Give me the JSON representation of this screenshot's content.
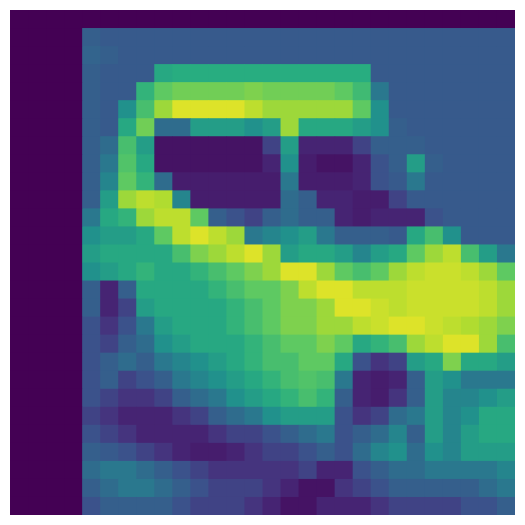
{
  "chart_data": {
    "type": "heatmap",
    "colormap": "viridis",
    "grid": false,
    "axes": "off",
    "value_range": [
      0,
      1
    ],
    "rows": 28,
    "cols": 28,
    "values": [
      [
        0.0,
        0.0,
        0.0,
        0.0,
        0.0,
        0.0,
        0.0,
        0.0,
        0.0,
        0.0,
        0.0,
        0.0,
        0.0,
        0.0,
        0.0,
        0.0,
        0.0,
        0.0,
        0.0,
        0.0,
        0.0,
        0.0,
        0.0,
        0.0,
        0.0,
        0.0,
        0.0,
        0.0
      ],
      [
        0.0,
        0.0,
        0.0,
        0.0,
        0.3,
        0.28,
        0.28,
        0.28,
        0.28,
        0.28,
        0.28,
        0.28,
        0.28,
        0.28,
        0.28,
        0.28,
        0.28,
        0.28,
        0.28,
        0.28,
        0.28,
        0.28,
        0.28,
        0.28,
        0.28,
        0.28,
        0.28,
        0.28
      ],
      [
        0.0,
        0.0,
        0.0,
        0.0,
        0.32,
        0.3,
        0.28,
        0.28,
        0.28,
        0.28,
        0.28,
        0.28,
        0.28,
        0.28,
        0.28,
        0.28,
        0.28,
        0.28,
        0.28,
        0.28,
        0.28,
        0.28,
        0.28,
        0.28,
        0.28,
        0.28,
        0.28,
        0.28
      ],
      [
        0.0,
        0.0,
        0.0,
        0.0,
        0.3,
        0.28,
        0.28,
        0.28,
        0.6,
        0.62,
        0.62,
        0.62,
        0.62,
        0.62,
        0.62,
        0.62,
        0.62,
        0.62,
        0.62,
        0.62,
        0.28,
        0.28,
        0.28,
        0.28,
        0.28,
        0.28,
        0.28,
        0.28
      ],
      [
        0.0,
        0.0,
        0.0,
        0.0,
        0.3,
        0.28,
        0.28,
        0.65,
        0.75,
        0.78,
        0.78,
        0.78,
        0.78,
        0.8,
        0.78,
        0.78,
        0.78,
        0.78,
        0.75,
        0.68,
        0.4,
        0.28,
        0.28,
        0.28,
        0.28,
        0.28,
        0.28,
        0.28
      ],
      [
        0.0,
        0.0,
        0.0,
        0.0,
        0.3,
        0.28,
        0.5,
        0.7,
        0.85,
        0.95,
        0.95,
        0.95,
        0.95,
        0.9,
        0.85,
        0.85,
        0.85,
        0.85,
        0.85,
        0.75,
        0.5,
        0.28,
        0.28,
        0.28,
        0.28,
        0.28,
        0.28,
        0.28
      ],
      [
        0.0,
        0.0,
        0.0,
        0.0,
        0.3,
        0.28,
        0.6,
        0.78,
        0.35,
        0.35,
        0.55,
        0.55,
        0.55,
        0.5,
        0.55,
        0.85,
        0.6,
        0.6,
        0.6,
        0.55,
        0.5,
        0.3,
        0.28,
        0.28,
        0.28,
        0.28,
        0.28,
        0.28
      ],
      [
        0.0,
        0.0,
        0.0,
        0.0,
        0.3,
        0.35,
        0.7,
        0.55,
        0.05,
        0.05,
        0.05,
        0.05,
        0.05,
        0.05,
        0.2,
        0.55,
        0.1,
        0.1,
        0.1,
        0.2,
        0.3,
        0.3,
        0.3,
        0.28,
        0.28,
        0.28,
        0.28,
        0.28
      ],
      [
        0.0,
        0.0,
        0.0,
        0.0,
        0.3,
        0.4,
        0.72,
        0.6,
        0.05,
        0.05,
        0.05,
        0.05,
        0.05,
        0.05,
        0.1,
        0.5,
        0.08,
        0.05,
        0.05,
        0.1,
        0.25,
        0.3,
        0.55,
        0.3,
        0.28,
        0.28,
        0.28,
        0.28
      ],
      [
        0.0,
        0.0,
        0.0,
        0.0,
        0.3,
        0.45,
        0.75,
        0.65,
        0.35,
        0.08,
        0.08,
        0.08,
        0.08,
        0.08,
        0.08,
        0.4,
        0.08,
        0.08,
        0.08,
        0.1,
        0.25,
        0.28,
        0.4,
        0.28,
        0.28,
        0.28,
        0.28,
        0.28
      ],
      [
        0.0,
        0.0,
        0.0,
        0.0,
        0.3,
        0.55,
        0.85,
        0.9,
        0.88,
        0.45,
        0.08,
        0.08,
        0.08,
        0.08,
        0.08,
        0.35,
        0.3,
        0.1,
        0.1,
        0.08,
        0.08,
        0.2,
        0.28,
        0.28,
        0.28,
        0.28,
        0.28,
        0.28
      ],
      [
        0.0,
        0.0,
        0.0,
        0.0,
        0.4,
        0.6,
        0.65,
        0.85,
        0.9,
        0.9,
        0.75,
        0.3,
        0.25,
        0.2,
        0.3,
        0.35,
        0.3,
        0.3,
        0.1,
        0.08,
        0.1,
        0.1,
        0.1,
        0.25,
        0.28,
        0.28,
        0.28,
        0.28
      ],
      [
        0.0,
        0.0,
        0.0,
        0.0,
        0.5,
        0.55,
        0.55,
        0.6,
        0.75,
        0.9,
        0.95,
        0.9,
        0.85,
        0.4,
        0.45,
        0.5,
        0.55,
        0.4,
        0.3,
        0.3,
        0.3,
        0.28,
        0.6,
        0.7,
        0.5,
        0.28,
        0.28,
        0.28
      ],
      [
        0.0,
        0.0,
        0.0,
        0.0,
        0.55,
        0.6,
        0.6,
        0.6,
        0.6,
        0.7,
        0.8,
        0.85,
        0.9,
        0.95,
        0.85,
        0.55,
        0.6,
        0.6,
        0.55,
        0.45,
        0.55,
        0.6,
        0.75,
        0.85,
        0.9,
        0.7,
        0.55,
        0.4
      ],
      [
        0.0,
        0.0,
        0.0,
        0.0,
        0.5,
        0.55,
        0.6,
        0.65,
        0.6,
        0.6,
        0.65,
        0.7,
        0.75,
        0.8,
        0.85,
        0.95,
        0.95,
        0.85,
        0.75,
        0.7,
        0.75,
        0.85,
        0.9,
        0.92,
        0.92,
        0.9,
        0.85,
        0.75
      ],
      [
        0.0,
        0.0,
        0.0,
        0.0,
        0.3,
        0.1,
        0.3,
        0.6,
        0.6,
        0.6,
        0.6,
        0.65,
        0.7,
        0.75,
        0.75,
        0.8,
        0.9,
        0.95,
        0.95,
        0.9,
        0.9,
        0.9,
        0.92,
        0.92,
        0.92,
        0.92,
        0.9,
        0.85
      ],
      [
        0.0,
        0.0,
        0.0,
        0.0,
        0.3,
        0.1,
        0.2,
        0.55,
        0.6,
        0.6,
        0.6,
        0.6,
        0.65,
        0.7,
        0.75,
        0.8,
        0.8,
        0.85,
        0.95,
        0.95,
        0.92,
        0.9,
        0.92,
        0.92,
        0.92,
        0.92,
        0.9,
        0.85
      ],
      [
        0.0,
        0.0,
        0.0,
        0.0,
        0.25,
        0.15,
        0.25,
        0.4,
        0.55,
        0.6,
        0.6,
        0.6,
        0.65,
        0.7,
        0.75,
        0.8,
        0.8,
        0.85,
        0.85,
        0.9,
        0.92,
        0.95,
        0.95,
        0.92,
        0.9,
        0.88,
        0.85,
        0.8
      ],
      [
        0.0,
        0.0,
        0.0,
        0.0,
        0.25,
        0.2,
        0.3,
        0.35,
        0.5,
        0.55,
        0.6,
        0.6,
        0.6,
        0.65,
        0.7,
        0.75,
        0.75,
        0.8,
        0.75,
        0.6,
        0.65,
        0.7,
        0.85,
        0.9,
        0.95,
        0.95,
        0.85,
        0.7
      ],
      [
        0.0,
        0.0,
        0.0,
        0.0,
        0.25,
        0.3,
        0.35,
        0.3,
        0.4,
        0.45,
        0.5,
        0.55,
        0.6,
        0.65,
        0.7,
        0.7,
        0.75,
        0.75,
        0.6,
        0.25,
        0.15,
        0.2,
        0.55,
        0.6,
        0.8,
        0.6,
        0.6,
        0.55
      ],
      [
        0.0,
        0.0,
        0.0,
        0.0,
        0.25,
        0.3,
        0.2,
        0.25,
        0.3,
        0.4,
        0.45,
        0.5,
        0.55,
        0.6,
        0.65,
        0.7,
        0.72,
        0.7,
        0.4,
        0.1,
        0.08,
        0.1,
        0.3,
        0.55,
        0.5,
        0.4,
        0.4,
        0.4
      ],
      [
        0.0,
        0.0,
        0.0,
        0.0,
        0.25,
        0.2,
        0.15,
        0.15,
        0.2,
        0.3,
        0.35,
        0.4,
        0.5,
        0.55,
        0.6,
        0.65,
        0.7,
        0.65,
        0.3,
        0.1,
        0.08,
        0.15,
        0.3,
        0.55,
        0.45,
        0.45,
        0.5,
        0.55
      ],
      [
        0.0,
        0.0,
        0.0,
        0.0,
        0.2,
        0.15,
        0.1,
        0.1,
        0.1,
        0.15,
        0.2,
        0.3,
        0.35,
        0.4,
        0.5,
        0.55,
        0.55,
        0.55,
        0.25,
        0.15,
        0.2,
        0.35,
        0.4,
        0.55,
        0.45,
        0.5,
        0.6,
        0.6
      ],
      [
        0.0,
        0.0,
        0.0,
        0.0,
        0.25,
        0.2,
        0.15,
        0.1,
        0.1,
        0.1,
        0.1,
        0.15,
        0.2,
        0.2,
        0.25,
        0.3,
        0.35,
        0.4,
        0.25,
        0.3,
        0.35,
        0.45,
        0.3,
        0.55,
        0.45,
        0.55,
        0.6,
        0.6
      ],
      [
        0.0,
        0.0,
        0.0,
        0.0,
        0.3,
        0.28,
        0.25,
        0.2,
        0.15,
        0.1,
        0.08,
        0.08,
        0.1,
        0.15,
        0.2,
        0.2,
        0.25,
        0.3,
        0.25,
        0.35,
        0.45,
        0.5,
        0.35,
        0.5,
        0.45,
        0.55,
        0.55,
        0.55
      ],
      [
        0.0,
        0.0,
        0.0,
        0.0,
        0.35,
        0.4,
        0.4,
        0.35,
        0.3,
        0.25,
        0.2,
        0.15,
        0.15,
        0.15,
        0.15,
        0.15,
        0.2,
        0.1,
        0.1,
        0.25,
        0.3,
        0.35,
        0.35,
        0.4,
        0.4,
        0.4,
        0.4,
        0.45
      ],
      [
        0.0,
        0.0,
        0.0,
        0.0,
        0.3,
        0.35,
        0.4,
        0.4,
        0.35,
        0.3,
        0.25,
        0.2,
        0.2,
        0.2,
        0.15,
        0.1,
        0.05,
        0.05,
        0.15,
        0.2,
        0.25,
        0.3,
        0.3,
        0.3,
        0.3,
        0.3,
        0.35,
        0.4
      ],
      [
        0.0,
        0.0,
        0.0,
        0.0,
        0.25,
        0.3,
        0.3,
        0.3,
        0.3,
        0.25,
        0.2,
        0.2,
        0.2,
        0.15,
        0.1,
        0.05,
        0.05,
        0.1,
        0.1,
        0.1,
        0.15,
        0.2,
        0.2,
        0.2,
        0.2,
        0.25,
        0.25,
        0.3
      ]
    ]
  },
  "colors": {
    "background": "#ffffff",
    "viridis_stops": [
      "#440154",
      "#472d7b",
      "#3b528b",
      "#2c728e",
      "#21918c",
      "#28ae80",
      "#5ec962",
      "#addc30",
      "#fde725"
    ]
  }
}
